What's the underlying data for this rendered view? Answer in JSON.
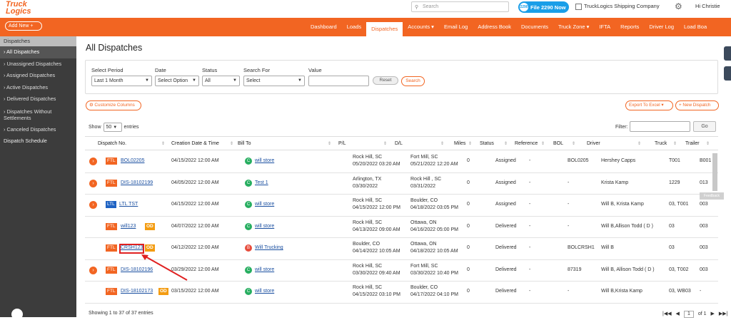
{
  "header": {
    "logo_top": "Truck",
    "logo_bottom": "Logics",
    "search_placeholder": "Search",
    "file_button": "File 2290 Now",
    "file_icon": "2290",
    "company": "TruckLogics Shipping Company",
    "user": "Hi Christie"
  },
  "nav": {
    "add_new": "Add New",
    "items": [
      "Dashboard",
      "Loads",
      "Dispatches",
      "Accounts ▾",
      "Email Log",
      "Address Book",
      "Documents",
      "Truck Zone ▾",
      "IFTA",
      "Reports",
      "Driver Log",
      "Load Boa"
    ]
  },
  "sidebar": {
    "header": "Dispatches",
    "items": [
      "› All Dispatches",
      "› Unassigned Dispatches",
      "› Assigned Dispatches",
      "› Active Dispatches",
      "› Delivered Dispatches",
      "› Dispatches Without Settlements",
      "› Canceled Dispatches"
    ],
    "schedule": "Dispatch Schedule"
  },
  "page": {
    "title": "All Dispatches"
  },
  "filters": {
    "period_label": "Select Period",
    "period_value": "Last 1 Month",
    "date_label": "Date",
    "date_value": "Select Option",
    "status_label": "Status",
    "status_value": "All",
    "searchfor_label": "Search For",
    "searchfor_value": "Select",
    "value_label": "Value",
    "reset": "Reset",
    "search": "Search"
  },
  "toolbar": {
    "customize": "⚙ Customize Columns",
    "export": "Export To Excel ▾",
    "new_dispatch": "+ New Dispatch",
    "show": "Show",
    "show_value": "50",
    "entries": "entries",
    "filter": "Filter:",
    "go": "Go"
  },
  "table": {
    "headers": [
      "Dispatch No.",
      "Creation Date & Time",
      "Bill To",
      "P/L",
      "D/L",
      "Miles",
      "Status",
      "Reference",
      "BOL",
      "Driver",
      "Truck",
      "Trailer"
    ],
    "rows": [
      {
        "type": "FTL",
        "dispatch": "BOL02205",
        "od": "",
        "created": "04/15/2022 12:00 AM",
        "bill_type": "C",
        "bill_to": "will store",
        "pl_city": "Rock Hill, SC",
        "pl_date": "05/20/2022 03:20 AM",
        "dl_city": "Fort Mill, SC",
        "dl_date": "05/21/2022 12:20 AM",
        "miles": "0",
        "status": "Assigned",
        "ref": "-",
        "bol": "BOL0205",
        "driver": "Hershey Capps",
        "truck": "T001",
        "trailer": "B001",
        "expand": true
      },
      {
        "type": "FTL",
        "dispatch": "DIS-18102199",
        "od": "",
        "created": "04/05/2022 12:00 AM",
        "bill_type": "C",
        "bill_to": "Test 1",
        "pl_city": "Arlington, TX",
        "pl_date": "03/30/2022",
        "dl_city": "Rock Hill , SC",
        "dl_date": "03/31/2022",
        "miles": "0",
        "status": "Assigned",
        "ref": "-",
        "bol": "-",
        "driver": "Krista Kamp",
        "truck": "1229",
        "trailer": "013",
        "expand": true
      },
      {
        "type": "LTL",
        "dispatch": "LTL TST",
        "od": "",
        "created": "04/15/2022 12:00 AM",
        "bill_type": "C",
        "bill_to": "will store",
        "pl_city": "Rock Hill, SC",
        "pl_date": "04/15/2022 12:00 PM",
        "dl_city": "Boulder, CO",
        "dl_date": "04/18/2022 03:05 PM",
        "miles": "0",
        "status": "Assigned",
        "ref": "-",
        "bol": "-",
        "driver": "Will B, Krista Kamp",
        "truck": "03, T001",
        "trailer": "003",
        "expand": true
      },
      {
        "type": "FTL",
        "dispatch": "will123",
        "od": "OD",
        "created": "04/07/2022 12:00 AM",
        "bill_type": "C",
        "bill_to": "will store",
        "pl_city": "Rock Hill, SC",
        "pl_date": "04/13/2022 09:00 AM",
        "dl_city": "Ottawa, ON",
        "dl_date": "04/16/2022 05:00 PM",
        "miles": "0",
        "status": "Delivered",
        "ref": "-",
        "bol": "-",
        "driver": "Will B,Allison Todd ( D )",
        "truck": "03",
        "trailer": "003",
        "expand": false
      },
      {
        "type": "FTL",
        "dispatch": "CRSH123",
        "od": "OD",
        "created": "04/12/2022 12:00 AM",
        "bill_type": "B",
        "bill_to": "Will Trucking",
        "pl_city": "Boulder, CO",
        "pl_date": "04/14/2022 10:05 AM",
        "dl_city": "Ottawa, ON",
        "dl_date": "04/18/2022 10:05 AM",
        "miles": "0",
        "status": "Delivered",
        "ref": "-",
        "bol": "BOLCRSH1",
        "driver": "Will B",
        "truck": "03",
        "trailer": "003",
        "expand": false
      },
      {
        "type": "FTL",
        "dispatch": "DIS-18102196",
        "od": "",
        "created": "03/29/2022 12:00 AM",
        "bill_type": "C",
        "bill_to": "will store",
        "pl_city": "Rock Hill, SC",
        "pl_date": "03/30/2022 09:40 AM",
        "dl_city": "Fort Mill, SC",
        "dl_date": "03/30/2022 10:40 PM",
        "miles": "0",
        "status": "Delivered",
        "ref": "-",
        "bol": "87319",
        "driver": "Will B, Allison Todd ( D )",
        "truck": "03, T002",
        "trailer": "003",
        "expand": true
      },
      {
        "type": "FTL",
        "dispatch": "DIS-18102173",
        "od": "OD",
        "created": "03/15/2022 12:00 AM",
        "bill_type": "C",
        "bill_to": "will store",
        "pl_city": "Rock Hill, SC",
        "pl_date": "04/15/2022 03:10 PM",
        "dl_city": "Boulder, CO",
        "dl_date": "04/17/2022 04:10 PM",
        "miles": "0",
        "status": "Delivered",
        "ref": "-",
        "bol": "-",
        "driver": "Will B,Krista Kamp",
        "truck": "03, WB03",
        "trailer": "-",
        "expand": false
      }
    ]
  },
  "footer": {
    "info": "Showing 1 to 37 of 37 entries",
    "page": "1",
    "of": "of 1"
  },
  "feedback": "Feedback",
  "colors": {
    "brand": "#f26522",
    "sidebar": "#3c3c3c",
    "link": "#1a4fa0",
    "ltl": "#1f63c3",
    "od": "#f39c12",
    "highlight": "#e02020"
  }
}
